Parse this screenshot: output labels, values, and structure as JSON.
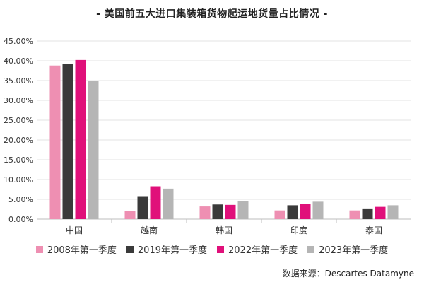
{
  "chart_data": {
    "type": "bar",
    "title": "- 美国前五大进口集装箱货物起运地货量占比情况 -",
    "categories": [
      "中国",
      "越南",
      "韩国",
      "印度",
      "泰国"
    ],
    "series": [
      {
        "name": "2008年第一季度",
        "color": "#ee8fb2",
        "values": [
          38.8,
          2.1,
          3.2,
          2.2,
          2.2
        ]
      },
      {
        "name": "2019年第一季度",
        "color": "#3a3a3a",
        "values": [
          39.2,
          5.8,
          3.7,
          3.5,
          2.7
        ]
      },
      {
        "name": "2022年第一季度",
        "color": "#e0107a",
        "values": [
          40.2,
          8.3,
          3.6,
          3.9,
          3.1
        ]
      },
      {
        "name": "2023年第一季度",
        "color": "#b5b5b5",
        "values": [
          35.0,
          7.7,
          4.6,
          4.4,
          3.5
        ]
      }
    ],
    "y_ticks": [
      "0.00%",
      "5.00%",
      "10.00%",
      "15.00%",
      "20.00%",
      "25.00%",
      "30.00%",
      "35.00%",
      "40.00%",
      "45.00%"
    ],
    "ylim": [
      0,
      45
    ],
    "grid": true,
    "legend_position": "bottom"
  },
  "source_note": "数据来源：Descartes Datamyne"
}
